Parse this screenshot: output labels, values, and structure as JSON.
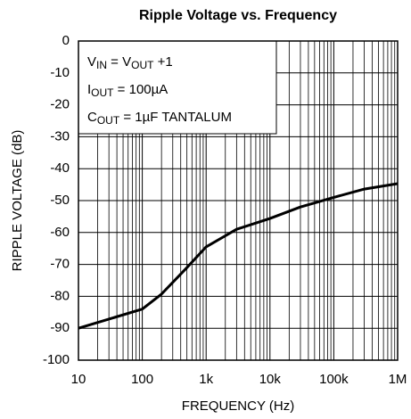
{
  "chart_data": {
    "type": "line",
    "title": "Ripple Voltage vs. Frequency",
    "xlabel": "FREQUENCY (Hz)",
    "ylabel": "RIPPLE VOLTAGE (dB)",
    "xscale": "log",
    "grid": true,
    "color": "#000000",
    "x": [
      10,
      100,
      200,
      500,
      1000,
      3000,
      10000,
      30000,
      100000,
      300000,
      1000000
    ],
    "values": [
      -90,
      -84,
      -79.3,
      -71,
      -64.5,
      -59,
      -55.6,
      -52,
      -49,
      -46.4,
      -44.7
    ],
    "xlim": [
      10,
      1000000
    ],
    "ylim": [
      -100,
      0
    ],
    "xticks": [
      10,
      100,
      {
        "value": 1000,
        "label": "1k"
      },
      {
        "value": 10000,
        "label": "10k"
      },
      {
        "value": 100000,
        "label": "100k"
      },
      {
        "value": 1000000,
        "label": "1M"
      }
    ],
    "yticks": [
      0,
      -10,
      -20,
      -30,
      -40,
      -50,
      -60,
      -70,
      -80,
      -90,
      -100
    ],
    "annotations": [
      [
        {
          "text": "V"
        },
        {
          "text": "IN",
          "sub": true
        },
        {
          "text": " = V"
        },
        {
          "text": "OUT",
          "sub": true
        },
        {
          "text": " +1"
        }
      ],
      [
        {
          "text": "I"
        },
        {
          "text": "OUT",
          "sub": true
        },
        {
          "text": " = 100µA"
        }
      ],
      [
        {
          "text": "C"
        },
        {
          "text": "OUT",
          "sub": true
        },
        {
          "text": " = 1µF TANTALUM"
        }
      ]
    ]
  }
}
